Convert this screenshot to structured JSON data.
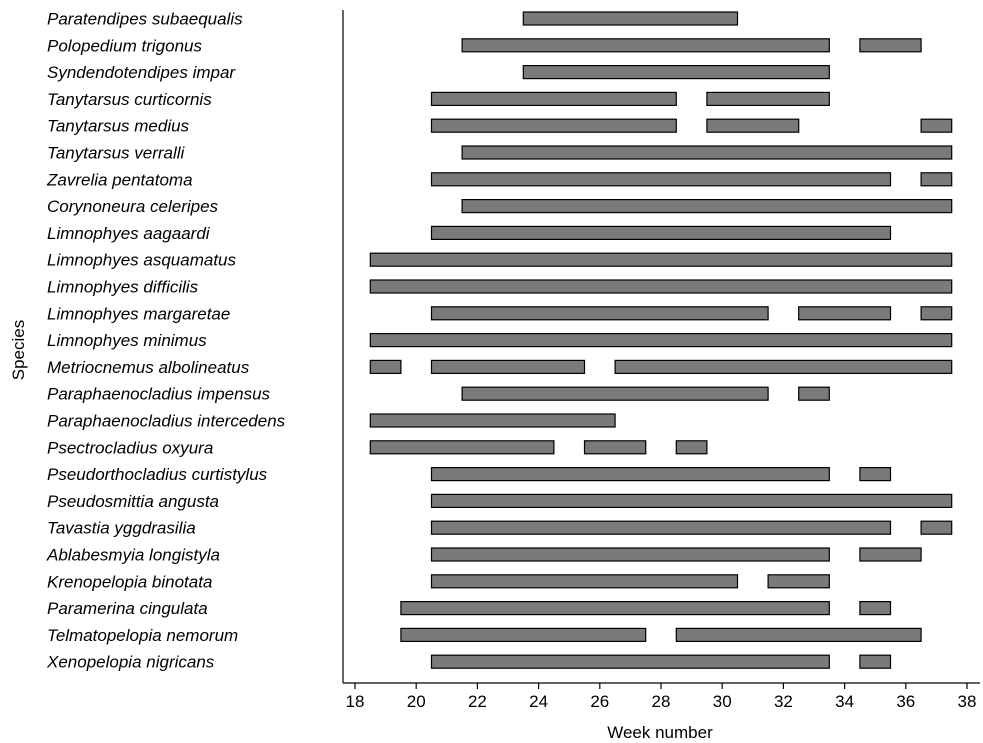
{
  "chart_data": {
    "type": "gantt",
    "xlabel": "Week number",
    "ylabel": "Species",
    "xlim": [
      18,
      38
    ],
    "xticks": [
      18,
      20,
      22,
      24,
      26,
      28,
      30,
      32,
      34,
      36,
      38
    ],
    "grid": false,
    "bar_color": "#7a7a7a",
    "species": [
      {
        "name": "Paratendipes subaequalis",
        "intervals": [
          [
            23.5,
            30.5
          ]
        ]
      },
      {
        "name": "Polopedium trigonus",
        "intervals": [
          [
            21.5,
            33.5
          ],
          [
            34.5,
            36.5
          ]
        ]
      },
      {
        "name": "Syndendotendipes impar",
        "intervals": [
          [
            23.5,
            33.5
          ]
        ]
      },
      {
        "name": "Tanytarsus curticornis",
        "intervals": [
          [
            20.5,
            28.5
          ],
          [
            29.5,
            33.5
          ]
        ]
      },
      {
        "name": "Tanytarsus medius",
        "intervals": [
          [
            20.5,
            28.5
          ],
          [
            29.5,
            32.5
          ],
          [
            36.5,
            37.5
          ]
        ]
      },
      {
        "name": "Tanytarsus verralli",
        "intervals": [
          [
            21.5,
            37.5
          ]
        ]
      },
      {
        "name": "Zavrelia pentatoma",
        "intervals": [
          [
            20.5,
            35.5
          ],
          [
            36.5,
            37.5
          ]
        ]
      },
      {
        "name": "Corynoneura celeripes",
        "intervals": [
          [
            21.5,
            37.5
          ]
        ]
      },
      {
        "name": "Limnophyes aagaardi",
        "intervals": [
          [
            20.5,
            35.5
          ]
        ]
      },
      {
        "name": "Limnophyes asquamatus",
        "intervals": [
          [
            18.5,
            37.5
          ]
        ]
      },
      {
        "name": "Limnophyes difficilis",
        "intervals": [
          [
            18.5,
            37.5
          ]
        ]
      },
      {
        "name": "Limnophyes margaretae",
        "intervals": [
          [
            20.5,
            31.5
          ],
          [
            32.5,
            35.5
          ],
          [
            36.5,
            37.5
          ]
        ]
      },
      {
        "name": "Limnophyes minimus",
        "intervals": [
          [
            18.5,
            37.5
          ]
        ]
      },
      {
        "name": "Metriocnemus albolineatus",
        "intervals": [
          [
            18.5,
            19.5
          ],
          [
            20.5,
            25.5
          ],
          [
            26.5,
            37.5
          ]
        ]
      },
      {
        "name": "Paraphaenocladius impensus",
        "intervals": [
          [
            21.5,
            31.5
          ],
          [
            32.5,
            33.5
          ]
        ]
      },
      {
        "name": "Paraphaenocladius intercedens",
        "intervals": [
          [
            18.5,
            26.5
          ]
        ]
      },
      {
        "name": "Psectrocladius oxyura",
        "intervals": [
          [
            18.5,
            24.5
          ],
          [
            25.5,
            27.5
          ],
          [
            28.5,
            29.5
          ]
        ]
      },
      {
        "name": "Pseudorthocladius curtistylus",
        "intervals": [
          [
            20.5,
            33.5
          ],
          [
            34.5,
            35.5
          ]
        ]
      },
      {
        "name": "Pseudosmittia angusta",
        "intervals": [
          [
            20.5,
            37.5
          ]
        ]
      },
      {
        "name": "Tavastia yggdrasilia",
        "intervals": [
          [
            20.5,
            35.5
          ],
          [
            36.5,
            37.5
          ]
        ]
      },
      {
        "name": "Ablabesmyia longistyla",
        "intervals": [
          [
            20.5,
            33.5
          ],
          [
            34.5,
            36.5
          ]
        ]
      },
      {
        "name": "Krenopelopia binotata",
        "intervals": [
          [
            20.5,
            30.5
          ],
          [
            31.5,
            33.5
          ]
        ]
      },
      {
        "name": "Paramerina cingulata",
        "intervals": [
          [
            19.5,
            33.5
          ],
          [
            34.5,
            35.5
          ]
        ]
      },
      {
        "name": "Telmatopelopia nemorum",
        "intervals": [
          [
            19.5,
            27.5
          ],
          [
            28.5,
            36.5
          ]
        ]
      },
      {
        "name": "Xenopelopia nigricans",
        "intervals": [
          [
            20.5,
            33.5
          ],
          [
            34.5,
            35.5
          ]
        ]
      }
    ]
  }
}
